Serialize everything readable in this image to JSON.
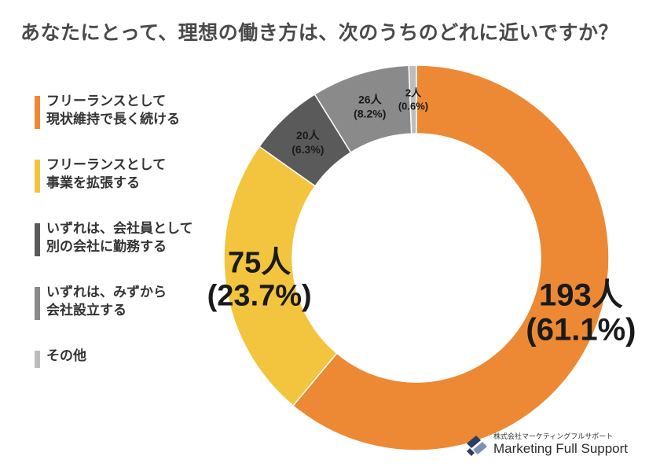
{
  "title": "あなたにとって、理想の働き方は、次のうちのどれに近いですか？",
  "legend": [
    {
      "text": "フリーランスとして\n現状維持で長く続ける",
      "color": "#ed8934"
    },
    {
      "text": "フリーランスとして\n事業を拡張する",
      "color": "#f3c53e"
    },
    {
      "text": "いずれは、会社員として\n別の会社に勤務する",
      "color": "#5a5a5a"
    },
    {
      "text": "いずれは、みずから\n会社設立する",
      "color": "#8a8a8a"
    },
    {
      "text": "その他",
      "color": "#bdbdbd"
    }
  ],
  "chart_data": {
    "type": "pie",
    "donut": true,
    "title": "あなたにとって、理想の働き方は、次のうちのどれに近いですか？",
    "categories": [
      "フリーランスとして現状維持で長く続ける",
      "フリーランスとして事業を拡張する",
      "いずれは、会社員として別の会社に勤務する",
      "いずれは、みずから会社設立する",
      "その他"
    ],
    "counts": [
      193,
      75,
      20,
      26,
      2
    ],
    "percents": [
      61.1,
      23.7,
      6.3,
      8.2,
      0.6
    ],
    "labels": [
      {
        "count": "193人",
        "percent": "(61.1%)"
      },
      {
        "count": "75人",
        "percent": "(23.7%)"
      },
      {
        "count": "20人",
        "percent": "(6.3%)"
      },
      {
        "count": "26人",
        "percent": "(8.2%)"
      },
      {
        "count": "2人",
        "percent": "(0.6%)"
      }
    ],
    "colors": [
      "#ed8934",
      "#f3c53e",
      "#5a5a5a",
      "#8a8a8a",
      "#bdbdbd"
    ],
    "legend_position": "left"
  },
  "brand": {
    "subtitle": "株式会社マーケティングフルサポート",
    "name": "Marketing Full Support"
  }
}
